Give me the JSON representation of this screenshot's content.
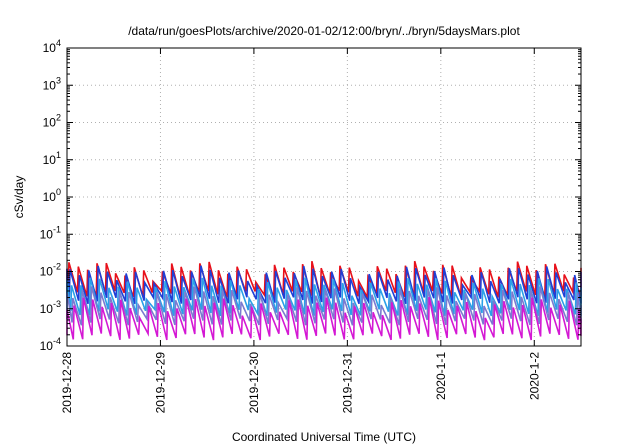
{
  "chart_data": {
    "type": "line",
    "title": "/data/run/goesPlots/archive/2020-01-02/12:00/bryn/../bryn/5daysMars.plot",
    "xlabel": "Coordinated Universal Time (UTC)",
    "ylabel": "cSv/day",
    "x_range": [
      "2019-12-28T00:00",
      "2020-01-02T12:00"
    ],
    "x_ticks": [
      "2019-12-28",
      "2019-12-29",
      "2019-12-30",
      "2019-12-31",
      "2020-1-1",
      "2020-1-2"
    ],
    "y_scale": "log",
    "y_range": [
      0.0001,
      10000
    ],
    "y_ticks": [
      {
        "base": "10",
        "exp": "-4"
      },
      {
        "base": "10",
        "exp": "-3"
      },
      {
        "base": "10",
        "exp": "-2"
      },
      {
        "base": "10",
        "exp": "-1"
      },
      {
        "base": "10",
        "exp": "0"
      },
      {
        "base": "10",
        "exp": "1"
      },
      {
        "base": "10",
        "exp": "2"
      },
      {
        "base": "10",
        "exp": "3"
      },
      {
        "base": "10",
        "exp": "4"
      }
    ],
    "grid": true,
    "pattern": {
      "period_hours": 2.4,
      "first_peak_hour": 0.3,
      "note_peaks": "daily peak values per series; curves decay between peaks"
    },
    "series": [
      {
        "color": "#e8101a",
        "peak": 0.012,
        "trough": 0.0025,
        "phase": 0.0
      },
      {
        "color": "#1f3fd6",
        "peak": 0.009,
        "trough": 0.0017,
        "phase": 0.12
      },
      {
        "color": "#2aa0e8",
        "peak": 0.0045,
        "trough": 0.0008,
        "phase": 0.28
      },
      {
        "color": "#7a7ad0",
        "peak": 0.0025,
        "trough": 0.00045,
        "phase": 0.42
      },
      {
        "color": "#d418d4",
        "peak": 0.0013,
        "trough": 0.00018,
        "phase": 0.55
      }
    ]
  }
}
